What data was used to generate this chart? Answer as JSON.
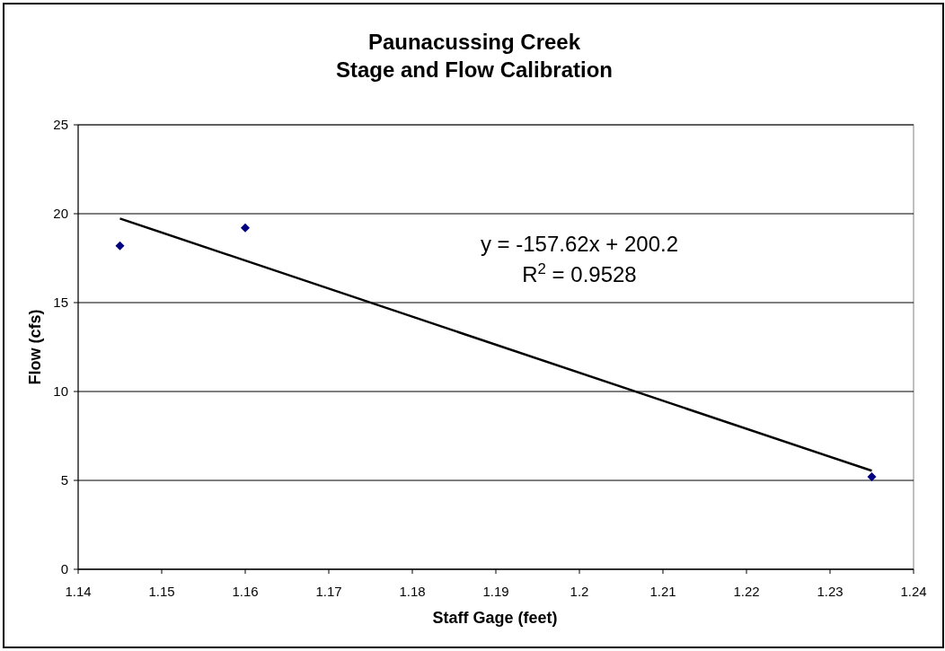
{
  "chart_data": {
    "type": "scatter",
    "title": "Paunacussing Creek\nStage and Flow Calibration",
    "xlabel": "Staff Gage (feet)",
    "ylabel": "Flow (cfs)",
    "xlim": [
      1.14,
      1.24
    ],
    "xticks": [
      1.14,
      1.15,
      1.16,
      1.17,
      1.18,
      1.19,
      1.2,
      1.21,
      1.22,
      1.23,
      1.24
    ],
    "ylim": [
      0,
      25
    ],
    "yticks": [
      0,
      5,
      10,
      15,
      20,
      25
    ],
    "grid": "y",
    "series": [
      {
        "marker": "diamond",
        "color": "#000080",
        "x": [
          1.145,
          1.16,
          1.235
        ],
        "values": [
          18.2,
          19.2,
          5.2
        ]
      },
      {
        "type": "line",
        "marker": "none",
        "color": "#000000",
        "x": [
          1.145,
          1.235
        ],
        "values": [
          19.73,
          5.54
        ]
      }
    ],
    "annotations": [
      "y = -157.62x + 200.2",
      "R$^{2}$ = 0.9528"
    ]
  }
}
